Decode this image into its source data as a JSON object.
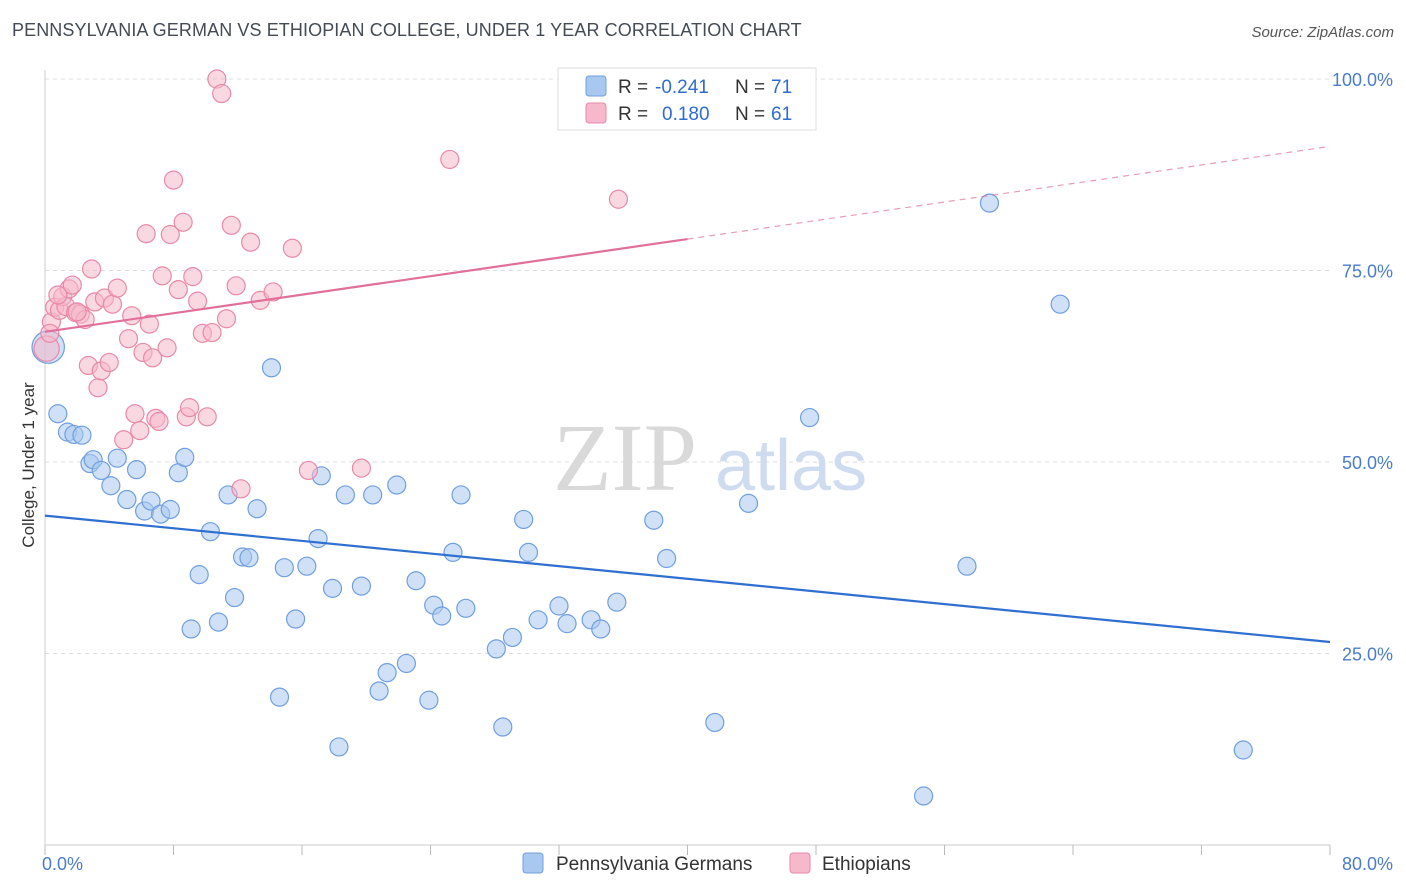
{
  "header": {
    "title": "PENNSYLVANIA GERMAN VS ETHIOPIAN COLLEGE, UNDER 1 YEAR CORRELATION CHART",
    "source": "Source: ZipAtlas.com"
  },
  "watermark": {
    "zip": "ZIP",
    "atlas": "atlas"
  },
  "legend_box": {
    "r_label": "R =",
    "n_label": "N =",
    "rows": [
      {
        "r": "-0.241",
        "n": "71",
        "color": "#a9c8f0",
        "stroke": "#6f9fe0"
      },
      {
        "r": "0.180",
        "n": "61",
        "color": "#f6b8cb",
        "stroke": "#e889a8"
      }
    ]
  },
  "chart_data": {
    "type": "scatter",
    "title": "PENNSYLVANIA GERMAN VS ETHIOPIAN COLLEGE, UNDER 1 YEAR CORRELATION CHART",
    "xlabel": "",
    "ylabel": "College, Under 1 year",
    "xlim": [
      0,
      80
    ],
    "ylim": [
      0,
      100
    ],
    "x_tick_labels": [
      "0.0%",
      "80.0%"
    ],
    "y_ticks": [
      25,
      50,
      75,
      100
    ],
    "y_tick_labels": [
      "25.0%",
      "50.0%",
      "75.0%",
      "100.0%"
    ],
    "grid": true,
    "legend_position": "bottom-center",
    "series": [
      {
        "name": "Pennsylvania Germans",
        "color": "#a9c8f0",
        "stroke": "#6f9fe0",
        "line_color": "#2f6fd0",
        "trend": {
          "x0": 0,
          "y0": 43.0,
          "x1": 80,
          "y1": 26.5,
          "solid_until": 80
        },
        "points": [
          [
            0.2,
            65.0,
            1.8
          ],
          [
            0.8,
            56.3,
            1
          ],
          [
            1.4,
            53.9,
            1
          ],
          [
            1.8,
            53.6,
            1
          ],
          [
            2.3,
            53.5,
            1
          ],
          [
            2.8,
            49.8,
            1
          ],
          [
            3.0,
            50.3,
            1
          ],
          [
            3.5,
            48.9,
            1
          ],
          [
            4.1,
            46.9,
            1
          ],
          [
            4.5,
            50.5,
            1
          ],
          [
            5.1,
            45.1,
            1
          ],
          [
            5.7,
            49.0,
            1
          ],
          [
            6.2,
            43.6,
            1
          ],
          [
            6.6,
            44.9,
            1
          ],
          [
            7.2,
            43.2,
            1
          ],
          [
            7.8,
            43.8,
            1
          ],
          [
            8.3,
            48.6,
            1
          ],
          [
            8.7,
            50.6,
            1
          ],
          [
            9.1,
            28.2,
            1
          ],
          [
            9.6,
            35.3,
            1
          ],
          [
            10.3,
            40.9,
            1
          ],
          [
            10.8,
            29.1,
            1
          ],
          [
            11.4,
            45.7,
            1
          ],
          [
            11.8,
            32.3,
            1
          ],
          [
            12.3,
            37.6,
            1
          ],
          [
            12.7,
            37.5,
            1
          ],
          [
            13.2,
            43.9,
            1
          ],
          [
            14.1,
            62.3,
            1
          ],
          [
            14.6,
            19.3,
            1
          ],
          [
            14.9,
            36.2,
            1
          ],
          [
            15.6,
            29.5,
            1
          ],
          [
            16.3,
            36.4,
            1
          ],
          [
            17.0,
            40.0,
            1
          ],
          [
            17.2,
            48.2,
            1
          ],
          [
            17.9,
            33.5,
            1
          ],
          [
            18.3,
            12.8,
            1
          ],
          [
            18.7,
            45.7,
            1
          ],
          [
            19.7,
            33.8,
            1
          ],
          [
            20.4,
            45.7,
            1
          ],
          [
            20.8,
            20.1,
            1
          ],
          [
            21.3,
            22.5,
            1
          ],
          [
            21.9,
            47.0,
            1
          ],
          [
            22.5,
            23.7,
            1
          ],
          [
            23.1,
            34.5,
            1
          ],
          [
            23.9,
            18.9,
            1
          ],
          [
            24.2,
            31.3,
            1
          ],
          [
            24.7,
            29.9,
            1
          ],
          [
            25.4,
            38.2,
            1
          ],
          [
            25.9,
            45.7,
            1
          ],
          [
            26.2,
            30.9,
            1
          ],
          [
            28.1,
            25.6,
            1
          ],
          [
            28.5,
            15.4,
            1
          ],
          [
            29.1,
            27.1,
            1
          ],
          [
            29.8,
            42.5,
            1
          ],
          [
            30.1,
            38.2,
            1
          ],
          [
            30.7,
            29.4,
            1
          ],
          [
            32.0,
            31.2,
            1
          ],
          [
            32.5,
            28.9,
            1
          ],
          [
            34.0,
            29.4,
            1
          ],
          [
            34.6,
            28.2,
            1
          ],
          [
            35.6,
            31.7,
            1
          ],
          [
            37.9,
            42.4,
            1
          ],
          [
            38.7,
            37.4,
            1
          ],
          [
            41.7,
            16.0,
            1
          ],
          [
            43.8,
            44.6,
            1
          ],
          [
            47.6,
            55.8,
            1
          ],
          [
            54.7,
            6.4,
            1
          ],
          [
            57.4,
            36.4,
            1
          ],
          [
            58.8,
            83.8,
            1
          ],
          [
            63.2,
            70.6,
            1
          ],
          [
            74.6,
            12.4,
            1
          ]
        ]
      },
      {
        "name": "Ethiopians",
        "color": "#f6b8cb",
        "stroke": "#e889a8",
        "line_color": "#e0709a",
        "trend": {
          "x0": 0,
          "y0": 67.0,
          "x1": 80,
          "y1": 91.2,
          "solid_until": 40
        },
        "points": [
          [
            0.1,
            64.8,
            1.4
          ],
          [
            0.4,
            68.3,
            1
          ],
          [
            0.6,
            70.2,
            1
          ],
          [
            0.9,
            69.8,
            1
          ],
          [
            1.1,
            71.6,
            1
          ],
          [
            1.3,
            70.3,
            1
          ],
          [
            1.5,
            72.6,
            1
          ],
          [
            1.7,
            73.1,
            1
          ],
          [
            1.9,
            69.5,
            1
          ],
          [
            2.2,
            69.3,
            1
          ],
          [
            2.5,
            68.6,
            1
          ],
          [
            2.7,
            62.6,
            1
          ],
          [
            2.9,
            75.2,
            1
          ],
          [
            3.1,
            70.9,
            1
          ],
          [
            3.3,
            59.7,
            1
          ],
          [
            3.5,
            61.9,
            1
          ],
          [
            3.7,
            71.4,
            1
          ],
          [
            4.0,
            63.0,
            1
          ],
          [
            4.2,
            70.6,
            1
          ],
          [
            4.5,
            72.7,
            1
          ],
          [
            4.9,
            52.9,
            1
          ],
          [
            5.2,
            66.1,
            1
          ],
          [
            5.4,
            69.1,
            1
          ],
          [
            5.6,
            56.3,
            1
          ],
          [
            5.9,
            54.1,
            1
          ],
          [
            6.1,
            64.3,
            1
          ],
          [
            6.3,
            79.8,
            1
          ],
          [
            6.5,
            68.0,
            1
          ],
          [
            6.7,
            63.6,
            1
          ],
          [
            6.9,
            55.7,
            1
          ],
          [
            7.1,
            55.3,
            1
          ],
          [
            7.3,
            74.3,
            1
          ],
          [
            7.6,
            64.9,
            1
          ],
          [
            7.8,
            79.7,
            1
          ],
          [
            8.0,
            86.8,
            1
          ],
          [
            8.3,
            72.5,
            1
          ],
          [
            8.6,
            81.3,
            1
          ],
          [
            8.8,
            55.9,
            1
          ],
          [
            9.0,
            57.1,
            1
          ],
          [
            9.2,
            74.2,
            1
          ],
          [
            9.5,
            71.0,
            1
          ],
          [
            9.8,
            66.8,
            1
          ],
          [
            10.1,
            55.9,
            1
          ],
          [
            10.4,
            66.9,
            1
          ],
          [
            10.7,
            100.0,
            1
          ],
          [
            11.0,
            98.1,
            1
          ],
          [
            11.3,
            68.7,
            1
          ],
          [
            11.6,
            80.9,
            1
          ],
          [
            11.9,
            73.0,
            1
          ],
          [
            12.2,
            46.5,
            1
          ],
          [
            12.8,
            78.7,
            1
          ],
          [
            13.4,
            71.1,
            1
          ],
          [
            14.2,
            72.2,
            1
          ],
          [
            15.4,
            77.9,
            1
          ],
          [
            16.4,
            48.9,
            1
          ],
          [
            19.7,
            49.2,
            1
          ],
          [
            25.2,
            89.5,
            1
          ],
          [
            35.7,
            84.3,
            1
          ],
          [
            0.3,
            66.8,
            1
          ],
          [
            0.8,
            71.8,
            1
          ],
          [
            2.0,
            69.6,
            1
          ]
        ]
      }
    ]
  }
}
